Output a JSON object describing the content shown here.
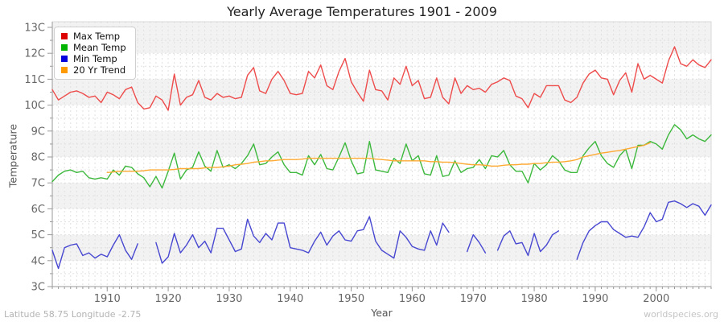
{
  "footer": {
    "left": "Latitude 58.75 Longitude -2.75",
    "right": "worldspecies.org"
  },
  "chart_data": {
    "type": "line",
    "title": "Yearly Average Temperatures 1901 - 2009",
    "xlabel": "Year",
    "ylabel": "Temperature",
    "x_range": [
      1901,
      2009
    ],
    "ylim": [
      3,
      13
    ],
    "grid": true,
    "legend_position": "top-left",
    "xtick_values": [
      1910,
      1920,
      1930,
      1940,
      1950,
      1960,
      1970,
      1980,
      1990,
      2000
    ],
    "xtick_labels": [
      "1910",
      "1920",
      "1930",
      "1940",
      "1950",
      "1960",
      "1970",
      "1980",
      "1990",
      "2000"
    ],
    "ytick_values": [
      3,
      4,
      5,
      6,
      7,
      8,
      9,
      10,
      11,
      12,
      13
    ],
    "ytick_labels": [
      "3C",
      "4C",
      "5C",
      "6C",
      "7C",
      "8C",
      "9C",
      "10C",
      "11C",
      "12C",
      "13C"
    ],
    "colors": {
      "band": "#f2f2f2",
      "grid": "#e0e0e0",
      "axis": "#999999",
      "border": "#d8d8d8",
      "tick_text": "#666666"
    },
    "series": [
      {
        "name": "Max Temp",
        "color": "#ee4b4b",
        "legend_color": "#dd0000",
        "values": [
          10.6,
          10.2,
          10.35,
          10.5,
          10.55,
          10.45,
          10.3,
          10.35,
          10.1,
          10.5,
          10.4,
          10.25,
          10.6,
          10.7,
          10.1,
          9.85,
          9.9,
          10.35,
          10.2,
          9.8,
          11.2,
          10.0,
          10.3,
          10.4,
          10.95,
          10.3,
          10.2,
          10.45,
          10.3,
          10.35,
          10.25,
          10.3,
          11.15,
          11.45,
          10.55,
          10.45,
          11.0,
          11.3,
          10.95,
          10.45,
          10.4,
          10.45,
          11.3,
          11.05,
          11.55,
          10.75,
          10.6,
          11.3,
          11.8,
          10.9,
          10.5,
          10.15,
          11.35,
          10.6,
          10.55,
          10.2,
          11.05,
          10.8,
          11.5,
          10.75,
          10.95,
          10.25,
          10.3,
          11.05,
          10.3,
          10.05,
          11.05,
          10.45,
          10.75,
          10.6,
          10.65,
          10.5,
          10.8,
          10.9,
          11.05,
          10.95,
          10.35,
          10.25,
          9.9,
          10.45,
          10.3,
          10.75,
          10.75,
          10.75,
          10.2,
          10.1,
          10.3,
          10.85,
          11.2,
          11.35,
          11.05,
          11.0,
          10.4,
          10.95,
          11.25,
          10.5,
          11.6,
          11.0,
          11.15,
          11.0,
          10.85,
          11.7,
          12.25,
          11.6,
          11.5,
          11.75,
          11.55,
          11.45,
          11.75
        ]
      },
      {
        "name": "Mean Temp",
        "color": "#3cb83c",
        "legend_color": "#00b400",
        "values": [
          7.05,
          7.3,
          7.45,
          7.5,
          7.4,
          7.45,
          7.2,
          7.15,
          7.2,
          7.15,
          7.5,
          7.3,
          7.65,
          7.6,
          7.35,
          7.2,
          6.85,
          7.25,
          6.8,
          7.45,
          8.15,
          7.15,
          7.5,
          7.6,
          8.2,
          7.65,
          7.45,
          8.25,
          7.6,
          7.7,
          7.55,
          7.75,
          8.05,
          8.5,
          7.7,
          7.75,
          8.0,
          8.2,
          7.7,
          7.4,
          7.4,
          7.3,
          8.05,
          7.7,
          8.1,
          7.55,
          7.5,
          8.0,
          8.55,
          7.85,
          7.35,
          7.4,
          8.6,
          7.5,
          7.45,
          7.4,
          7.95,
          7.75,
          8.5,
          7.85,
          8.05,
          7.35,
          7.3,
          8.05,
          7.25,
          7.3,
          7.85,
          7.4,
          7.55,
          7.6,
          7.9,
          7.55,
          8.05,
          8.0,
          8.25,
          7.7,
          7.45,
          7.45,
          7.0,
          7.75,
          7.5,
          7.7,
          8.05,
          7.85,
          7.5,
          7.4,
          7.4,
          8.05,
          8.35,
          8.6,
          8.05,
          7.75,
          7.6,
          8.05,
          8.3,
          7.55,
          8.45,
          8.45,
          8.6,
          8.5,
          8.3,
          8.85,
          9.25,
          9.05,
          8.7,
          8.85,
          8.7,
          8.6,
          8.85
        ]
      },
      {
        "name": "Min Temp",
        "color": "#4747d1",
        "legend_color": "#0000dd",
        "values": [
          4.4,
          3.7,
          4.5,
          4.6,
          4.65,
          4.2,
          4.3,
          4.1,
          4.25,
          4.15,
          4.6,
          5.0,
          4.4,
          4.05,
          4.65,
          null,
          null,
          4.7,
          3.9,
          4.15,
          5.05,
          4.3,
          4.6,
          5.0,
          4.5,
          4.75,
          4.3,
          5.25,
          5.25,
          4.8,
          4.35,
          4.45,
          5.6,
          4.95,
          4.7,
          5.05,
          4.8,
          5.45,
          5.45,
          4.5,
          4.45,
          4.4,
          4.3,
          4.75,
          5.1,
          4.6,
          4.95,
          5.15,
          4.8,
          4.75,
          5.15,
          5.2,
          5.7,
          4.75,
          4.4,
          4.25,
          4.1,
          5.15,
          4.9,
          4.55,
          4.45,
          4.4,
          5.15,
          4.6,
          5.45,
          5.1,
          null,
          null,
          4.35,
          5.0,
          4.7,
          4.3,
          null,
          4.4,
          4.95,
          5.15,
          4.65,
          4.7,
          4.2,
          5.05,
          4.35,
          4.6,
          5.0,
          5.15,
          null,
          null,
          4.05,
          4.7,
          5.15,
          5.35,
          5.5,
          5.5,
          5.2,
          5.05,
          4.9,
          4.95,
          4.9,
          5.3,
          5.85,
          5.5,
          5.6,
          6.25,
          6.3,
          6.2,
          6.05,
          6.2,
          6.1,
          5.75,
          6.15
        ]
      },
      {
        "name": "20 Yr Trend",
        "color": "#ffaa33",
        "legend_color": "#ff9900",
        "values": [
          null,
          null,
          null,
          null,
          null,
          null,
          null,
          null,
          null,
          7.4,
          7.42,
          7.45,
          7.45,
          7.45,
          7.45,
          7.47,
          7.5,
          7.5,
          7.5,
          7.5,
          7.52,
          7.55,
          7.55,
          7.55,
          7.55,
          7.58,
          7.6,
          7.6,
          7.62,
          7.65,
          7.7,
          7.72,
          7.75,
          7.8,
          7.82,
          7.85,
          7.85,
          7.88,
          7.9,
          7.9,
          7.9,
          7.92,
          7.95,
          7.95,
          7.95,
          7.95,
          7.95,
          7.95,
          7.95,
          7.95,
          7.95,
          7.95,
          7.95,
          7.92,
          7.9,
          7.88,
          7.85,
          7.85,
          7.85,
          7.85,
          7.85,
          7.85,
          7.82,
          7.82,
          7.8,
          7.8,
          7.78,
          7.75,
          7.72,
          7.7,
          7.7,
          7.68,
          7.65,
          7.65,
          7.68,
          7.7,
          7.7,
          7.72,
          7.72,
          7.75,
          7.75,
          7.78,
          7.8,
          7.8,
          7.82,
          7.85,
          7.9,
          8.0,
          8.05,
          8.1,
          8.15,
          8.18,
          8.22,
          8.25,
          8.3,
          8.35,
          8.4,
          8.45,
          8.55,
          null,
          null,
          null,
          null,
          null,
          null,
          null,
          null,
          null,
          null
        ]
      }
    ]
  }
}
